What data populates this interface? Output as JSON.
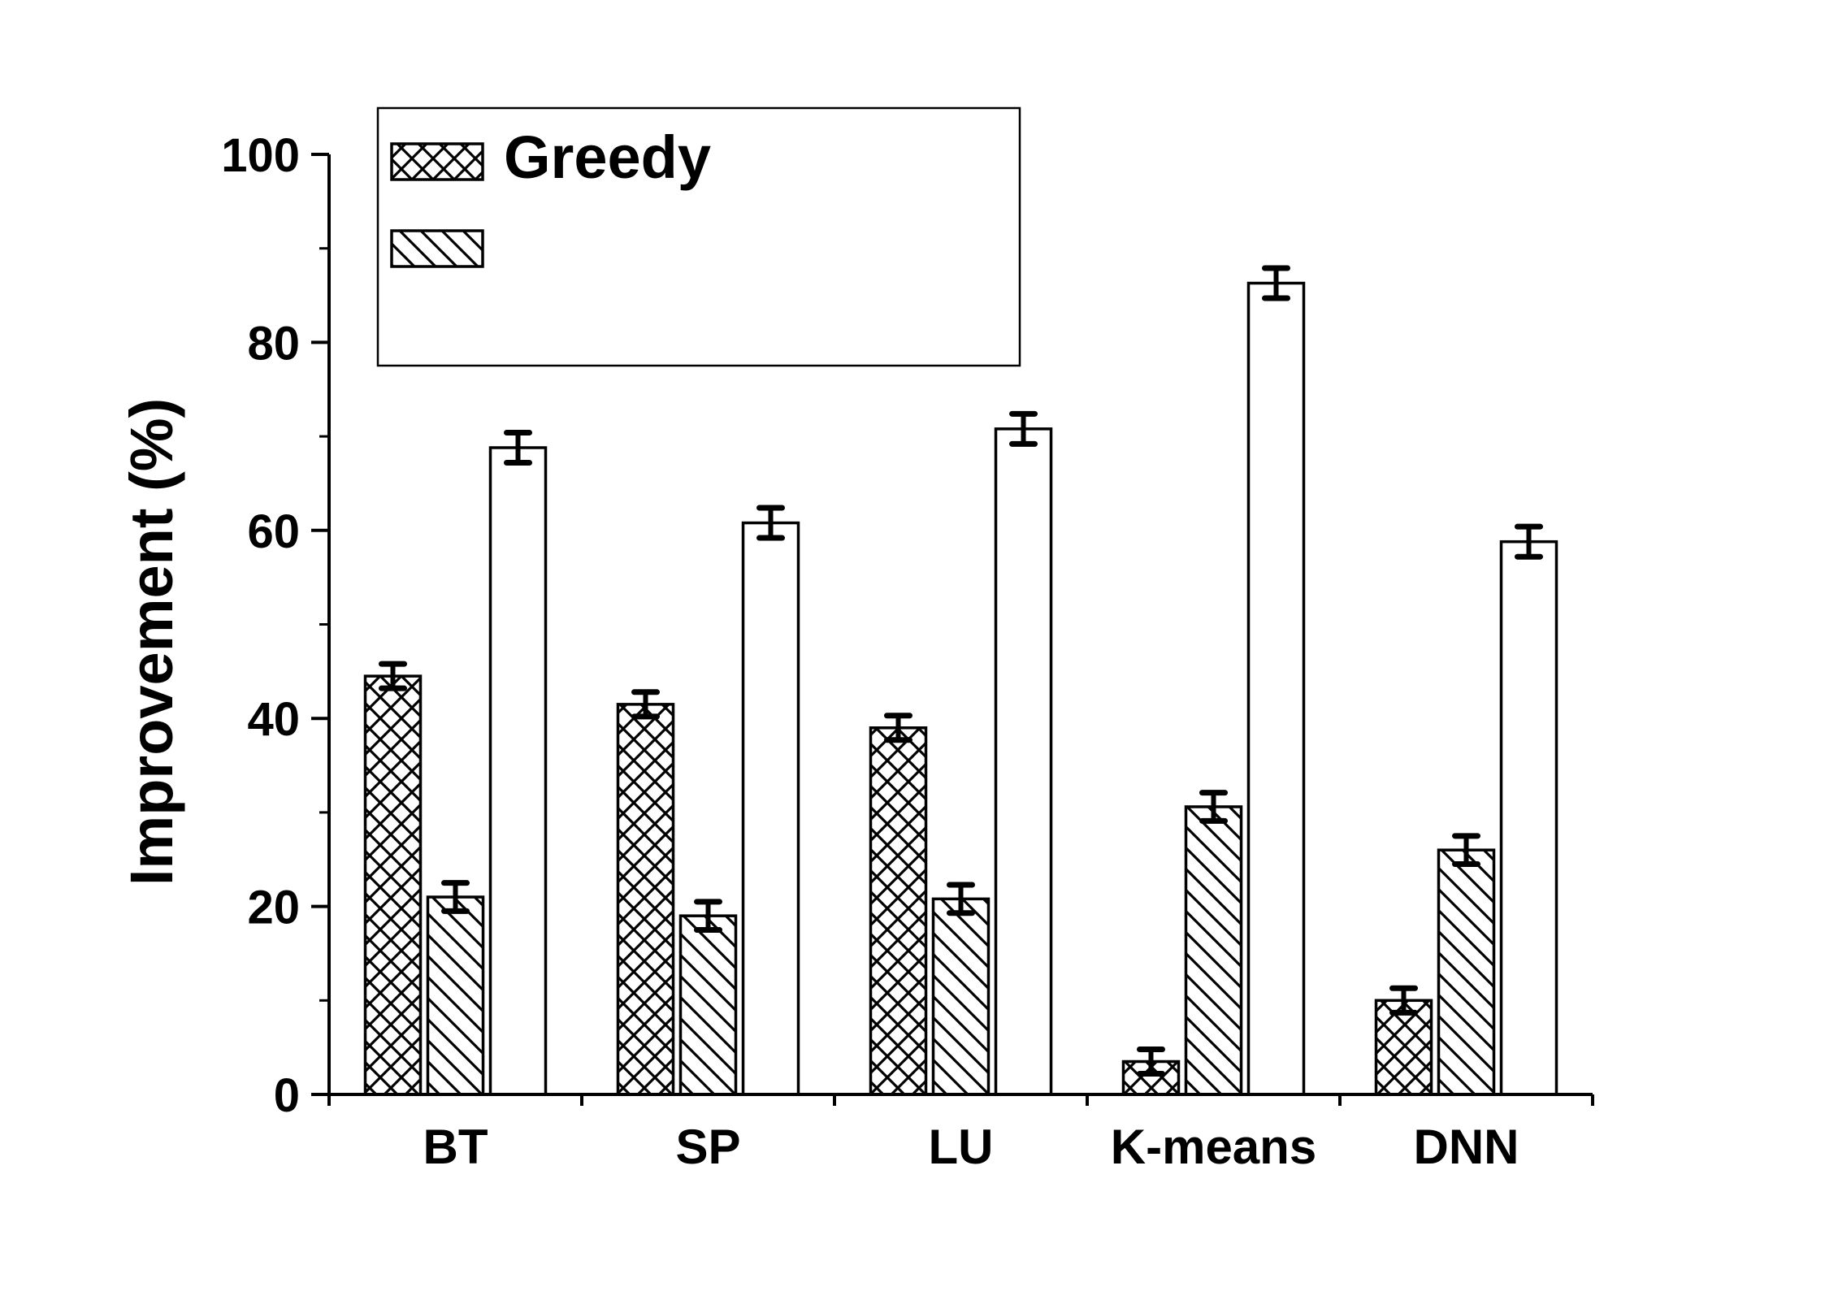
{
  "chart_data": {
    "type": "bar",
    "categories": [
      "BT",
      "SP",
      "LU",
      "K-means",
      "DNN"
    ],
    "series": [
      {
        "name": "Greedy",
        "pattern": "crosshatch",
        "values": [
          44.5,
          41.5,
          39,
          3.5,
          10
        ],
        "errors": [
          1.3,
          1.3,
          1.3,
          1.3,
          1.3
        ]
      },
      {
        "name": "",
        "pattern": "diagonal",
        "values": [
          21,
          19,
          20.8,
          30.6,
          26
        ],
        "errors": [
          1.5,
          1.5,
          1.5,
          1.5,
          1.5
        ]
      },
      {
        "name": "",
        "pattern": "none",
        "values": [
          68.8,
          60.8,
          70.8,
          86.3,
          58.8
        ],
        "errors": [
          1.6,
          1.6,
          1.6,
          1.6,
          1.6
        ]
      }
    ],
    "yticks": [
      "0",
      "20",
      "40",
      "60",
      "80",
      "100"
    ],
    "ylim": [
      0,
      100
    ],
    "ylabel": "Improvement (%)",
    "xlabel": "",
    "title": "",
    "grid": false,
    "legend_position": "top-left",
    "colors": {
      "bar_fill": "#ffffff",
      "stroke": "#000000"
    }
  }
}
